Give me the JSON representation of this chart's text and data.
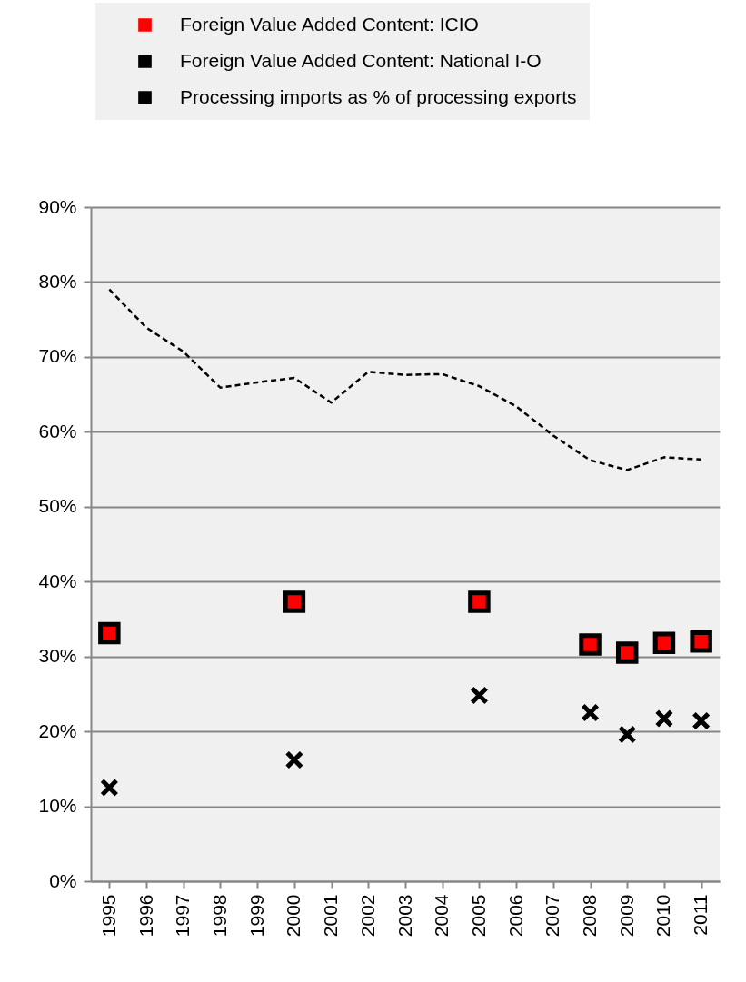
{
  "chart_data": {
    "type": "scatter",
    "categories": [
      "1995",
      "1996",
      "1997",
      "1998",
      "1999",
      "2000",
      "2001",
      "2002",
      "2003",
      "2004",
      "2005",
      "2006",
      "2007",
      "2008",
      "2009",
      "2010",
      "2011"
    ],
    "ylim": [
      0,
      90
    ],
    "yticks": [
      {
        "value": 0,
        "label": "0%"
      },
      {
        "value": 10,
        "label": "10%"
      },
      {
        "value": 20,
        "label": "20%"
      },
      {
        "value": 30,
        "label": "30%"
      },
      {
        "value": 40,
        "label": "40%"
      },
      {
        "value": 50,
        "label": "50%"
      },
      {
        "value": 60,
        "label": "60%"
      },
      {
        "value": 70,
        "label": "70%"
      },
      {
        "value": 80,
        "label": "80%"
      },
      {
        "value": 90,
        "label": "90%"
      }
    ],
    "grid": "y",
    "legend": "top",
    "series": [
      {
        "name": "Foreign Value Added Content: ICIO",
        "marker": "square",
        "color": "#ff0000",
        "values": [
          33.1,
          null,
          null,
          null,
          null,
          37.3,
          null,
          null,
          null,
          null,
          37.3,
          null,
          null,
          31.6,
          30.5,
          31.8,
          32.0
        ]
      },
      {
        "name": "Foreign Value Added Content: National I-O",
        "marker": "cross",
        "color": "#000000",
        "values": [
          12.5,
          null,
          null,
          null,
          null,
          16.2,
          null,
          null,
          null,
          null,
          24.8,
          null,
          null,
          22.5,
          19.6,
          21.7,
          21.4
        ]
      },
      {
        "name": "Processing imports as % of processing exports",
        "type": "line",
        "line_style": "dashed",
        "color": "#000000",
        "values": [
          79.0,
          73.9,
          70.7,
          65.9,
          66.6,
          67.2,
          63.9,
          68.0,
          67.6,
          67.7,
          66.1,
          63.4,
          59.5,
          56.2,
          54.9,
          56.6,
          56.3
        ]
      }
    ]
  }
}
